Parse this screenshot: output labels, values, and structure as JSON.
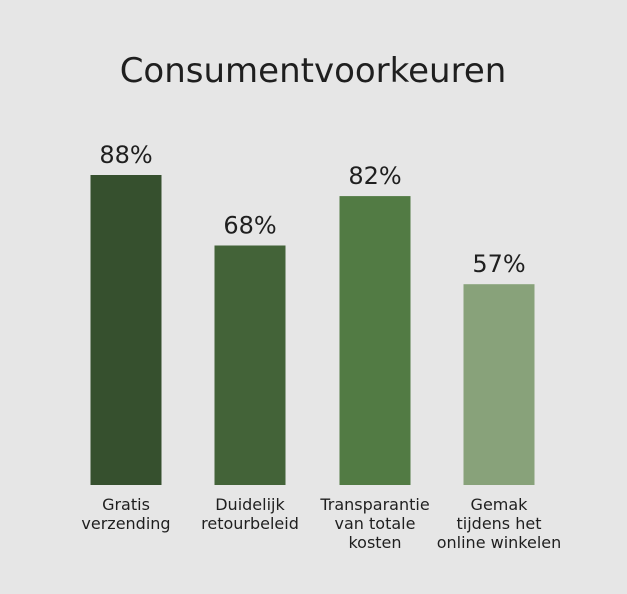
{
  "chart_data": {
    "type": "bar",
    "title": "Consumentvoorkeuren",
    "xlabel": "",
    "ylabel": "",
    "ylim": [
      0,
      100
    ],
    "grid": false,
    "legend": "none",
    "categories": [
      [
        "Gratis",
        "verzending"
      ],
      [
        "Duidelijk",
        "retourbeleid"
      ],
      [
        "Transparantie",
        "van totale",
        "kosten"
      ],
      [
        "Gemak",
        "tijdens het",
        "online winkelen"
      ]
    ],
    "values": [
      88,
      68,
      82,
      57
    ],
    "value_labels": [
      "88%",
      "68%",
      "82%",
      "57%"
    ],
    "colors": [
      "#36502e",
      "#436338",
      "#527b44",
      "#88a27a"
    ]
  }
}
